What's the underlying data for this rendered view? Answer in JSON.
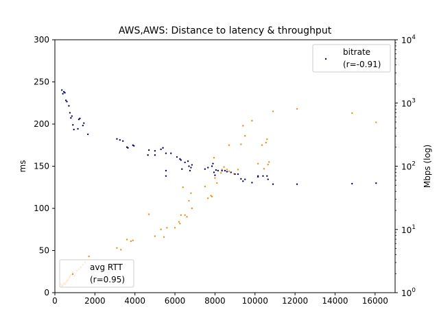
{
  "chart_data": {
    "type": "scatter",
    "title": "AWS,AWS: Distance to latency & throughput",
    "xlabel": "",
    "ylabel_left": "ms",
    "ylabel_right": "Mbps (log)",
    "xlim": [
      0,
      17000
    ],
    "ylim_left": [
      0,
      300
    ],
    "ylim_right": [
      1,
      10000
    ],
    "right_scale": "log",
    "x_ticks": [
      "0",
      "2000",
      "4000",
      "6000",
      "8000",
      "10000",
      "12000",
      "14000",
      "16000"
    ],
    "y_left_ticks": [
      "0",
      "50",
      "100",
      "150",
      "200",
      "250",
      "300"
    ],
    "y_right_ticks": [
      {
        "base": "10",
        "exp": "0"
      },
      {
        "base": "10",
        "exp": "1"
      },
      {
        "base": "10",
        "exp": "2"
      },
      {
        "base": "10",
        "exp": "3"
      },
      {
        "base": "10",
        "exp": "4"
      }
    ],
    "grid": false,
    "series": [
      {
        "name": "avg RTT",
        "legend_label": "avg RTT",
        "legend_sub": "(r=0.95)",
        "legend_position": "lower-left",
        "axis": "left",
        "color": "#ff8c00",
        "points": [
          [
            300,
            10
          ],
          [
            350,
            8
          ],
          [
            400,
            9
          ],
          [
            450,
            11
          ],
          [
            500,
            10
          ],
          [
            550,
            12
          ],
          [
            600,
            14
          ],
          [
            650,
            15
          ],
          [
            700,
            17
          ],
          [
            750,
            19
          ],
          [
            800,
            21
          ],
          [
            900,
            24
          ],
          [
            1000,
            20
          ],
          [
            1100,
            26
          ],
          [
            1200,
            28
          ],
          [
            1300,
            30
          ],
          [
            1400,
            33
          ],
          [
            1500,
            36
          ],
          [
            1700,
            43
          ],
          [
            3100,
            53
          ],
          [
            3300,
            51
          ],
          [
            3600,
            63
          ],
          [
            3800,
            61
          ],
          [
            3900,
            62
          ],
          [
            4700,
            93
          ],
          [
            5000,
            67
          ],
          [
            5300,
            75
          ],
          [
            5450,
            66
          ],
          [
            5600,
            77
          ],
          [
            6000,
            77
          ],
          [
            6200,
            84
          ],
          [
            6250,
            82
          ],
          [
            6300,
            92
          ],
          [
            6400,
            125
          ],
          [
            6500,
            92
          ],
          [
            6600,
            90
          ],
          [
            6700,
            109
          ],
          [
            6800,
            118
          ],
          [
            6850,
            100
          ],
          [
            7500,
            126
          ],
          [
            7650,
            112
          ],
          [
            7800,
            115
          ],
          [
            7850,
            114
          ],
          [
            7950,
            160
          ],
          [
            8000,
            136
          ],
          [
            8100,
            130
          ],
          [
            8300,
            142
          ],
          [
            8350,
            146
          ],
          [
            8450,
            149
          ],
          [
            8600,
            146
          ],
          [
            8700,
            175
          ],
          [
            8700,
            144
          ],
          [
            8950,
            141
          ],
          [
            9150,
            146
          ],
          [
            9300,
            176
          ],
          [
            9400,
            198
          ],
          [
            9500,
            186
          ],
          [
            9850,
            204
          ],
          [
            10150,
            153
          ],
          [
            10350,
            175
          ],
          [
            10450,
            147
          ],
          [
            10550,
            178
          ],
          [
            10600,
            182
          ],
          [
            10650,
            152
          ],
          [
            10700,
            155
          ],
          [
            10900,
            215
          ],
          [
            12100,
            218
          ],
          [
            14850,
            213
          ],
          [
            16050,
            202
          ]
        ]
      },
      {
        "name": "bitrate",
        "legend_label": "bitrate",
        "legend_sub": "(r=-0.91)",
        "legend_position": "upper-right",
        "axis": "right",
        "color": "#00008b",
        "points": [
          [
            350,
            1600
          ],
          [
            400,
            1400
          ],
          [
            450,
            1500
          ],
          [
            500,
            1450
          ],
          [
            550,
            1100
          ],
          [
            600,
            1050
          ],
          [
            700,
            900
          ],
          [
            750,
            700
          ],
          [
            800,
            580
          ],
          [
            850,
            620
          ],
          [
            900,
            450
          ],
          [
            950,
            380
          ],
          [
            1150,
            390
          ],
          [
            1200,
            550
          ],
          [
            1250,
            570
          ],
          [
            1400,
            440
          ],
          [
            1450,
            480
          ],
          [
            1650,
            320
          ],
          [
            3100,
            270
          ],
          [
            3250,
            260
          ],
          [
            3400,
            250
          ],
          [
            3600,
            200
          ],
          [
            3650,
            195
          ],
          [
            3900,
            215
          ],
          [
            3950,
            210
          ],
          [
            4650,
            150
          ],
          [
            4700,
            180
          ],
          [
            5000,
            150
          ],
          [
            5000,
            175
          ],
          [
            5300,
            185
          ],
          [
            5400,
            195
          ],
          [
            5550,
            160
          ],
          [
            5550,
            85
          ],
          [
            5550,
            70
          ],
          [
            5800,
            160
          ],
          [
            6100,
            140
          ],
          [
            6250,
            130
          ],
          [
            6300,
            125
          ],
          [
            6350,
            90
          ],
          [
            6500,
            115
          ],
          [
            6650,
            120
          ],
          [
            6700,
            100
          ],
          [
            6750,
            85
          ],
          [
            6800,
            95
          ],
          [
            6850,
            105
          ],
          [
            7500,
            90
          ],
          [
            7650,
            95
          ],
          [
            7850,
            100
          ],
          [
            7900,
            110
          ],
          [
            7950,
            80
          ],
          [
            8000,
            72
          ],
          [
            8050,
            87
          ],
          [
            8150,
            85
          ],
          [
            8350,
            85
          ],
          [
            8500,
            85
          ],
          [
            8600,
            82
          ],
          [
            8800,
            80
          ],
          [
            9000,
            75
          ],
          [
            9150,
            75
          ],
          [
            9300,
            63
          ],
          [
            9400,
            58
          ],
          [
            9500,
            62
          ],
          [
            9850,
            55
          ],
          [
            10150,
            70
          ],
          [
            10150,
            68
          ],
          [
            10400,
            70
          ],
          [
            10600,
            70
          ],
          [
            10650,
            62
          ],
          [
            10900,
            52
          ],
          [
            12100,
            52
          ],
          [
            14850,
            53
          ],
          [
            16050,
            54
          ]
        ]
      }
    ]
  }
}
